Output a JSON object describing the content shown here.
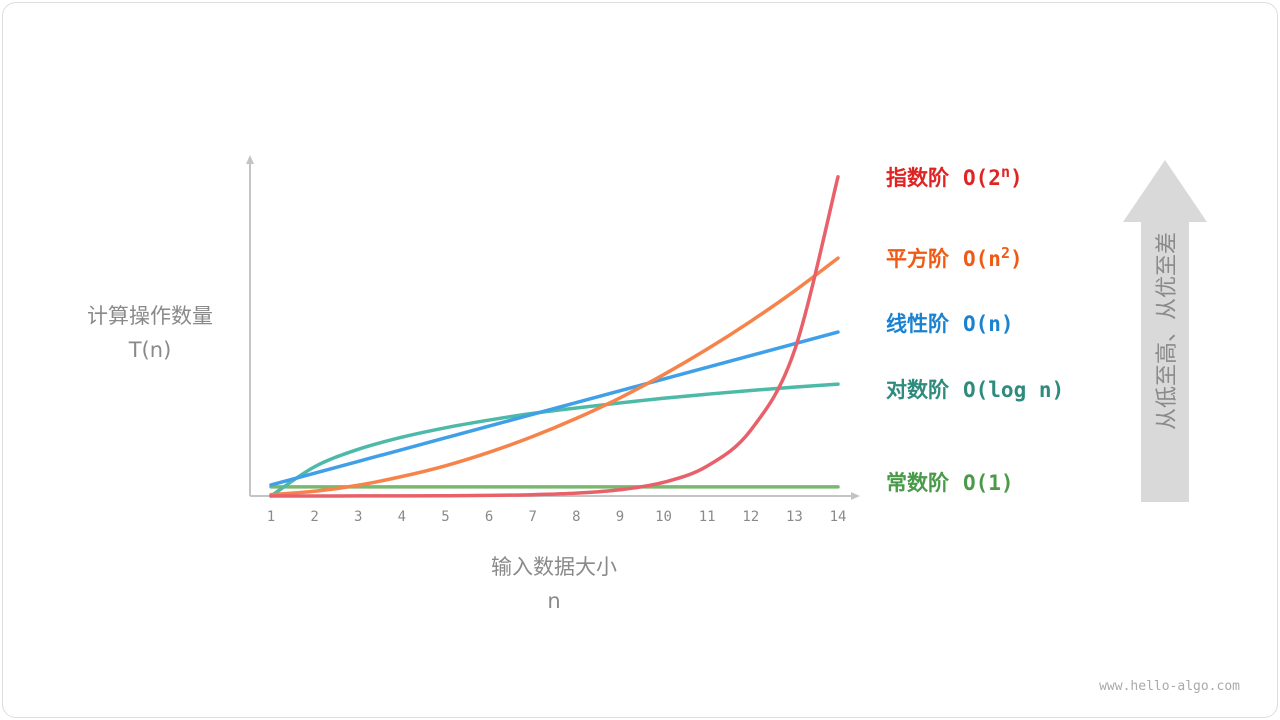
{
  "chart_data": {
    "type": "line",
    "x": [
      1,
      2,
      3,
      4,
      5,
      6,
      7,
      8,
      9,
      10,
      11,
      12,
      13,
      14
    ],
    "xlabel": "输入数据大小",
    "xlabel_var": "n",
    "ylabel": "计算操作数量",
    "ylabel_var": "T(n)",
    "ylim": [
      0,
      100
    ],
    "grid": false,
    "legend": "right",
    "series": [
      {
        "name": "指数阶",
        "notation": "O(2",
        "sup": "n",
        "close": ")",
        "color": "#e8616a",
        "label_color": "#e02424",
        "values": [
          0,
          0.01,
          0.02,
          0.04,
          0.08,
          0.17,
          0.38,
          0.84,
          1.85,
          4.06,
          8.9,
          19.6,
          43.2,
          95
        ]
      },
      {
        "name": "平方阶",
        "notation": "O(n",
        "sup": "2",
        "close": ")",
        "color": "#f5834a",
        "label_color": "#f05a14",
        "values": [
          0.4,
          1.4,
          3.2,
          5.8,
          9.0,
          13.0,
          17.7,
          23.1,
          29.2,
          36.1,
          43.7,
          52.0,
          61.0,
          70.8
        ]
      },
      {
        "name": "线性阶",
        "notation": "O(n)",
        "sup": "",
        "close": "",
        "color": "#3fa0e8",
        "label_color": "#1a82d0",
        "values": [
          3.3,
          6.8,
          10.3,
          13.8,
          17.3,
          20.8,
          24.3,
          27.8,
          31.3,
          34.8,
          38.3,
          41.8,
          45.3,
          48.8
        ]
      },
      {
        "name": "对数阶",
        "notation": "O(log n)",
        "sup": "",
        "close": "",
        "color": "#4dbaa8",
        "label_color": "#2e8b7e",
        "values": [
          0,
          8.7,
          13.9,
          17.5,
          20.3,
          22.6,
          24.6,
          26.2,
          27.7,
          29.1,
          30.3,
          31.4,
          32.4,
          33.3
        ]
      },
      {
        "name": "常数阶",
        "notation": "O(1)",
        "sup": "",
        "close": "",
        "color": "#7ab86f",
        "label_color": "#4a9a4a",
        "values": [
          2.7,
          2.7,
          2.7,
          2.7,
          2.7,
          2.7,
          2.7,
          2.7,
          2.7,
          2.7,
          2.7,
          2.7,
          2.7,
          2.7
        ]
      }
    ]
  },
  "arrow_label": "从低至高、从优至差",
  "axis_color": "#c4c4c4",
  "arrow_color": "#d9d9d9",
  "footer": "www.hello-algo.com"
}
